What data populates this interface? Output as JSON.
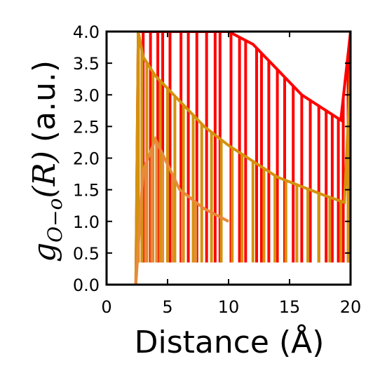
{
  "chart_data": {
    "type": "line",
    "xlabel": "Distance (Å)",
    "ylabel": "g_{O-O}(R) (a.u.)",
    "ylabel_parts": {
      "g": "g",
      "subscript": "O−o",
      "arg": "(R)",
      "units": "(a.u.)"
    },
    "xlim": [
      0,
      20
    ],
    "ylim": [
      0,
      4.0
    ],
    "xticks": [
      0,
      5,
      10,
      15,
      20
    ],
    "xtick_labels": [
      "0",
      "5",
      "10",
      "15",
      "20"
    ],
    "yticks": [
      0.0,
      0.5,
      1.0,
      1.5,
      2.0,
      2.5,
      3.0,
      3.5,
      4.0
    ],
    "ytick_labels": [
      "0.0",
      "0.5",
      "1.0",
      "1.5",
      "2.0",
      "2.5",
      "3.0",
      "3.5",
      "4.0"
    ],
    "grid": false,
    "legend": "none",
    "series": [
      {
        "color": "#ff0000",
        "envelope_x": [
          2.4,
          2.6,
          3.0,
          4.0,
          5.0,
          6.0,
          8.0,
          10.0,
          12.0,
          14.0,
          16.0,
          18.0,
          19.2,
          20.0
        ],
        "envelope_y": [
          0.0,
          4.0,
          4.0,
          4.0,
          4.0,
          4.0,
          4.0,
          4.0,
          3.8,
          3.4,
          3.0,
          2.75,
          2.6,
          4.0
        ],
        "spike_x": [
          2.6,
          3.0,
          3.6,
          4.2,
          4.6,
          5.2,
          6.1,
          6.7,
          7.4,
          8.2,
          8.9,
          9.3,
          10.2,
          10.9,
          11.4,
          12.3,
          12.7,
          13.3,
          14.0,
          14.6,
          15.3,
          16.0,
          16.7,
          17.4,
          18.0,
          18.5,
          19.0,
          19.4,
          19.8
        ]
      },
      {
        "color": "#d4920e",
        "envelope_x": [
          2.4,
          2.6,
          3.0,
          4.0,
          5.0,
          6.0,
          7.0,
          8.0,
          9.0,
          10.0,
          12.0,
          14.0,
          16.0,
          18.0,
          19.5,
          20.0
        ],
        "envelope_y": [
          0.0,
          4.0,
          3.6,
          3.3,
          3.1,
          2.9,
          2.7,
          2.5,
          2.35,
          2.2,
          1.95,
          1.7,
          1.55,
          1.4,
          1.3,
          3.4
        ],
        "spike_x": [
          2.6,
          2.9,
          3.3,
          3.8,
          4.4,
          5.0,
          5.6,
          6.3,
          7.1,
          7.8,
          8.6,
          9.4,
          10.3,
          11.1,
          12.0,
          12.9,
          13.8,
          14.7,
          15.6,
          16.5,
          17.4,
          18.3,
          19.2,
          19.8
        ]
      },
      {
        "color": "#e88a3a",
        "envelope_x": [
          2.4,
          3.0,
          4.0,
          5.0,
          6.0,
          8.0,
          10.0
        ],
        "envelope_y": [
          0.0,
          1.8,
          2.3,
          1.9,
          1.5,
          1.2,
          1.0
        ],
        "spike_x": [
          3.2,
          3.7,
          4.1,
          4.6,
          5.4,
          6.2,
          7.3
        ]
      }
    ]
  }
}
